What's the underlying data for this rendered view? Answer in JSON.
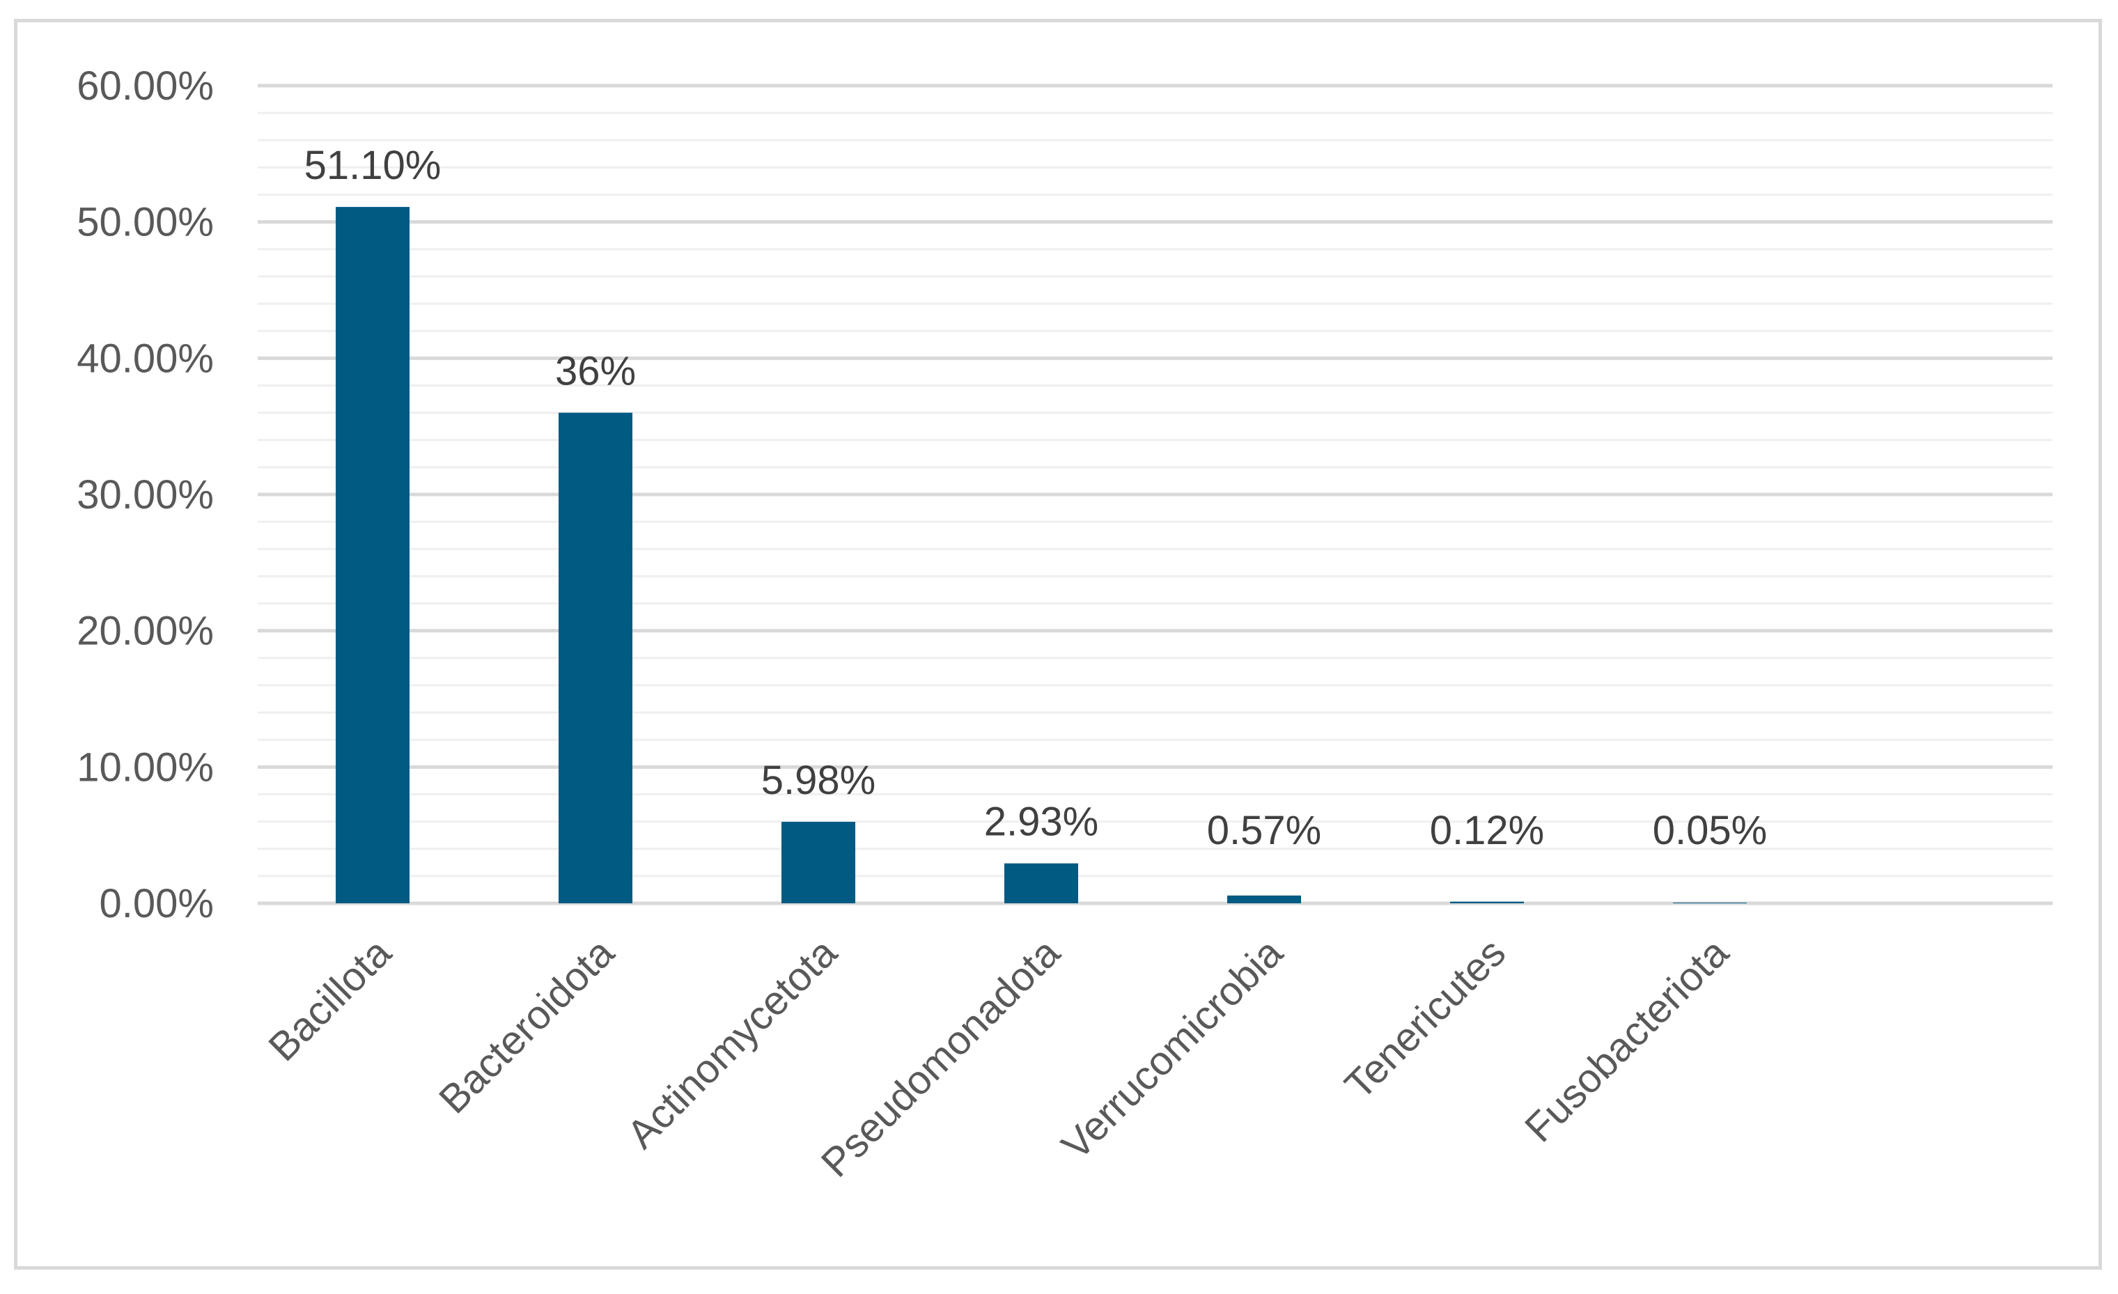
{
  "chart_data": {
    "type": "bar",
    "title": "",
    "xlabel": "",
    "ylabel": "",
    "categories": [
      "Bacillota",
      "Bacteroidota",
      "Actinomycetota",
      "Pseudomonadota",
      "Verrucomicrobia",
      "Tenericutes",
      "Fusobacteriota"
    ],
    "values": [
      51.1,
      36.0,
      5.98,
      2.93,
      0.57,
      0.12,
      0.05
    ],
    "data_labels": [
      "51.10%",
      "36%",
      "5.98%",
      "2.93%",
      "0.57%",
      "0.12%",
      "0.05%"
    ],
    "ylim": [
      0,
      60
    ],
    "y_ticks": [
      0,
      10,
      20,
      30,
      40,
      50,
      60
    ],
    "y_tick_labels": [
      "0.00%",
      "10.00%",
      "20.00%",
      "30.00%",
      "40.00%",
      "50.00%",
      "60.00%"
    ],
    "minor_gridlines": true,
    "major_gridlines": true,
    "legend": "none",
    "colors": {
      "bar": "#005a82",
      "major_grid": "#d9d9d9",
      "minor_grid": "#efefef",
      "frame": "#d9d9d9"
    }
  }
}
